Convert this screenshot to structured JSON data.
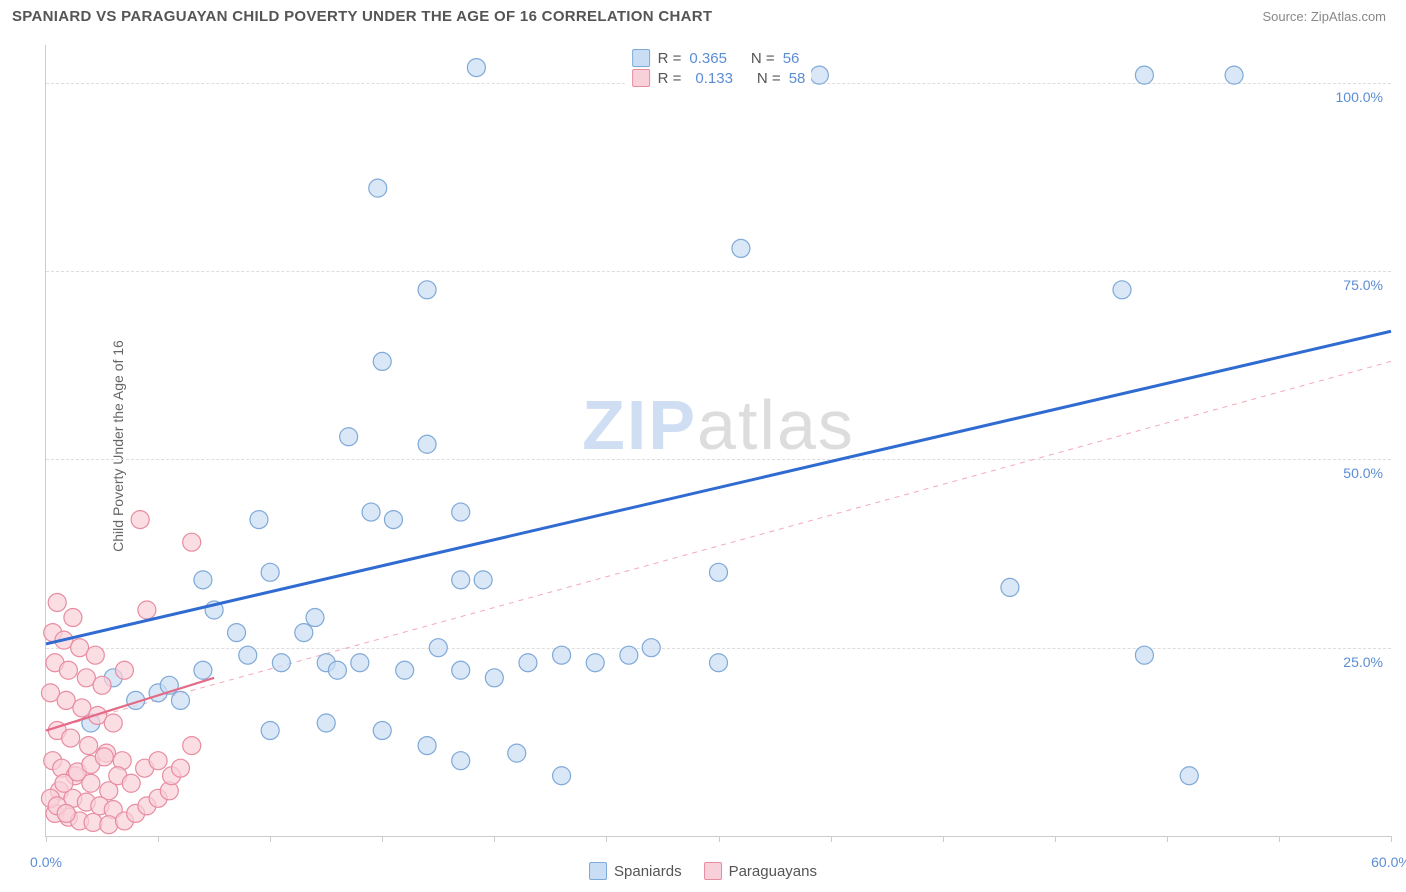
{
  "title": "SPANIARD VS PARAGUAYAN CHILD POVERTY UNDER THE AGE OF 16 CORRELATION CHART",
  "source_label": "Source: ZipAtlas.com",
  "y_axis_label": "Child Poverty Under the Age of 16",
  "watermark_a": "ZIP",
  "watermark_b": "atlas",
  "chart": {
    "type": "scatter",
    "xlim": [
      0,
      60
    ],
    "ylim": [
      0,
      105
    ],
    "x_ticks": [
      0,
      5,
      10,
      15,
      20,
      25,
      30,
      35,
      40,
      45,
      50,
      55,
      60
    ],
    "x_tick_labels": {
      "0": "0.0%",
      "60": "60.0%"
    },
    "y_gridlines": [
      25,
      50,
      75,
      100
    ],
    "y_tick_labels": {
      "25": "25.0%",
      "50": "50.0%",
      "75": "75.0%",
      "100": "100.0%"
    },
    "background_color": "#ffffff",
    "grid_color": "#dddddd",
    "axis_color": "#cccccc",
    "marker_radius": 9,
    "marker_stroke_width": 1.2,
    "series": [
      {
        "name": "Spaniards",
        "fill": "#c9ddf4",
        "stroke": "#7fa9d8",
        "fill_opacity": 0.7,
        "points": [
          [
            19.2,
            102
          ],
          [
            34.5,
            101
          ],
          [
            49,
            101
          ],
          [
            53,
            101
          ],
          [
            14.8,
            86
          ],
          [
            31,
            78
          ],
          [
            17,
            72.5
          ],
          [
            48,
            72.5
          ],
          [
            15,
            63
          ],
          [
            13.5,
            53
          ],
          [
            17,
            52
          ],
          [
            9.5,
            42
          ],
          [
            14.5,
            43
          ],
          [
            15.5,
            42
          ],
          [
            18.5,
            43
          ],
          [
            7,
            34
          ],
          [
            10,
            35
          ],
          [
            18.5,
            34
          ],
          [
            19.5,
            34
          ],
          [
            30,
            35
          ],
          [
            43,
            33
          ],
          [
            7.5,
            30
          ],
          [
            8.5,
            27
          ],
          [
            11.5,
            27
          ],
          [
            12,
            29
          ],
          [
            3,
            21
          ],
          [
            4,
            18
          ],
          [
            5,
            19
          ],
          [
            5.5,
            20
          ],
          [
            6,
            18
          ],
          [
            7,
            22
          ],
          [
            9,
            24
          ],
          [
            10.5,
            23
          ],
          [
            12.5,
            23
          ],
          [
            13,
            22
          ],
          [
            14,
            23
          ],
          [
            16,
            22
          ],
          [
            17.5,
            25
          ],
          [
            18.5,
            22
          ],
          [
            20,
            21
          ],
          [
            21.5,
            23
          ],
          [
            23,
            24
          ],
          [
            24.5,
            23
          ],
          [
            26,
            24
          ],
          [
            27,
            25
          ],
          [
            30,
            23
          ],
          [
            49,
            24
          ],
          [
            10,
            14
          ],
          [
            12.5,
            15
          ],
          [
            15,
            14
          ],
          [
            17,
            12
          ],
          [
            18.5,
            10
          ],
          [
            21,
            11
          ],
          [
            23,
            8
          ],
          [
            51,
            8
          ],
          [
            2,
            15
          ]
        ],
        "trend": {
          "x1": 0,
          "y1": 25.5,
          "x2": 60,
          "y2": 67,
          "stroke": "#2f6bd0",
          "width": 3,
          "dash": ""
        },
        "trend_ext": {
          "x1": 0,
          "y1": 14,
          "x2": 60,
          "y2": 63,
          "stroke": "#f4a9b8",
          "width": 1,
          "dash": "5,5"
        },
        "R": "0.365",
        "N": "56"
      },
      {
        "name": "Paraguayans",
        "fill": "#f8d0d9",
        "stroke": "#e88ca0",
        "fill_opacity": 0.7,
        "points": [
          [
            4.2,
            42
          ],
          [
            6.5,
            39
          ],
          [
            0.5,
            31
          ],
          [
            1.2,
            29
          ],
          [
            4.5,
            30
          ],
          [
            0.3,
            27
          ],
          [
            0.8,
            26
          ],
          [
            1.5,
            25
          ],
          [
            2.2,
            24
          ],
          [
            0.4,
            23
          ],
          [
            1.0,
            22
          ],
          [
            1.8,
            21
          ],
          [
            2.5,
            20
          ],
          [
            3.5,
            22
          ],
          [
            0.2,
            19
          ],
          [
            0.9,
            18
          ],
          [
            1.6,
            17
          ],
          [
            2.3,
            16
          ],
          [
            3.0,
            15
          ],
          [
            0.5,
            14
          ],
          [
            1.1,
            13
          ],
          [
            1.9,
            12
          ],
          [
            2.7,
            11
          ],
          [
            3.4,
            10
          ],
          [
            0.3,
            10
          ],
          [
            0.7,
            9
          ],
          [
            1.3,
            8
          ],
          [
            2.0,
            7
          ],
          [
            2.8,
            6
          ],
          [
            0.6,
            6
          ],
          [
            1.2,
            5
          ],
          [
            1.8,
            4.5
          ],
          [
            2.4,
            4
          ],
          [
            3.0,
            3.5
          ],
          [
            0.4,
            3
          ],
          [
            1.0,
            2.5
          ],
          [
            1.5,
            2
          ],
          [
            2.1,
            1.8
          ],
          [
            2.8,
            1.5
          ],
          [
            3.5,
            2
          ],
          [
            4.0,
            3
          ],
          [
            4.5,
            4
          ],
          [
            5.0,
            5
          ],
          [
            5.5,
            6
          ],
          [
            0.8,
            7
          ],
          [
            1.4,
            8.5
          ],
          [
            2.0,
            9.5
          ],
          [
            2.6,
            10.5
          ],
          [
            3.2,
            8
          ],
          [
            3.8,
            7
          ],
          [
            4.4,
            9
          ],
          [
            5.0,
            10
          ],
          [
            5.6,
            8
          ],
          [
            6.0,
            9
          ],
          [
            0.2,
            5
          ],
          [
            0.5,
            4
          ],
          [
            0.9,
            3
          ],
          [
            6.5,
            12
          ]
        ],
        "trend": {
          "x1": 0,
          "y1": 14,
          "x2": 7.5,
          "y2": 21,
          "stroke": "#e36b87",
          "width": 2.2,
          "dash": ""
        },
        "R": "0.133",
        "N": "58"
      }
    ]
  },
  "legend_top": {
    "r_label": "R =",
    "n_label": "N ="
  },
  "legend_bottom": [
    {
      "label": "Spaniards",
      "fill": "#c9ddf4",
      "stroke": "#7fa9d8"
    },
    {
      "label": "Paraguayans",
      "fill": "#f8d0d9",
      "stroke": "#e88ca0"
    }
  ]
}
